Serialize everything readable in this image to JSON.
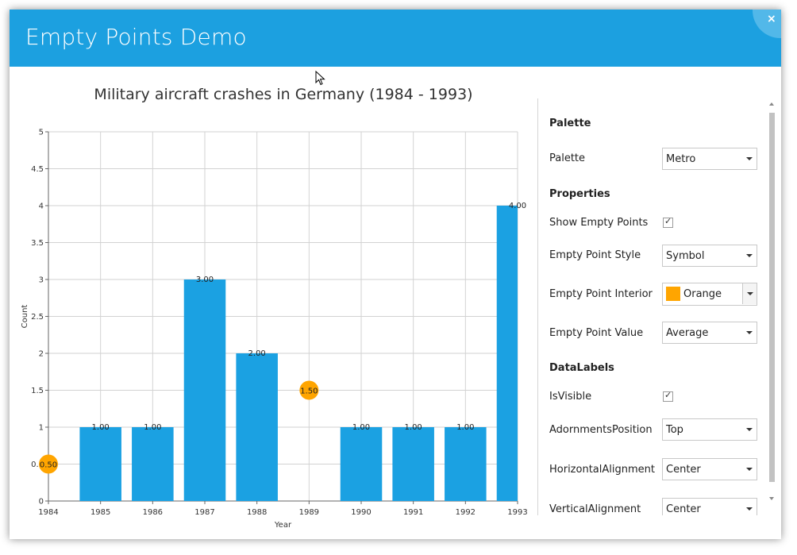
{
  "window": {
    "title": "Empty Points Demo",
    "close_glyph": "×"
  },
  "chart_data": {
    "type": "bar",
    "title": "Military aircraft crashes in Germany (1984 - 1993)",
    "xlabel": "Year",
    "ylabel": "Count",
    "x": [
      1984,
      1985,
      1986,
      1987,
      1988,
      1989,
      1990,
      1991,
      1992,
      1993
    ],
    "values": [
      null,
      1,
      1,
      3,
      2,
      null,
      1,
      1,
      1,
      4
    ],
    "empty_point_values": {
      "1984": 0.5,
      "1989": 1.5
    },
    "data_labels": [
      "0.50",
      "1.00",
      "1.00",
      "3.00",
      "2.00",
      "1.50",
      "1.00",
      "1.00",
      "1.00",
      "4.00"
    ],
    "ylim": [
      0,
      5
    ],
    "yticks": [
      "0",
      "0.5",
      "1",
      "1.5",
      "2",
      "2.5",
      "3",
      "3.5",
      "4",
      "4.5",
      "5"
    ],
    "xlim": [
      1984,
      1993
    ],
    "grid": true,
    "bar_color": "#1ba1e2",
    "empty_point_color": "#ffa500"
  },
  "panel": {
    "palette_header": "Palette",
    "palette_label": "Palette",
    "palette_value": "Metro",
    "properties_header": "Properties",
    "show_empty_points_label": "Show Empty Points",
    "show_empty_points_checked": true,
    "empty_point_style_label": "Empty Point Style",
    "empty_point_style_value": "Symbol",
    "empty_point_interior_label": "Empty Point Interior",
    "empty_point_interior_value": "Orange",
    "empty_point_interior_color": "#ffa500",
    "empty_point_value_label": "Empty Point Value",
    "empty_point_value_value": "Average",
    "datalabels_header": "DataLabels",
    "isvisible_label": "IsVisible",
    "isvisible_checked": true,
    "adornments_position_label": "AdornmentsPosition",
    "adornments_position_value": "Top",
    "horizontal_alignment_label": "HorizontalAlignment",
    "horizontal_alignment_value": "Center",
    "vertical_alignment_label": "VerticalAlignment",
    "vertical_alignment_value": "Center"
  },
  "checkmark": "✓"
}
